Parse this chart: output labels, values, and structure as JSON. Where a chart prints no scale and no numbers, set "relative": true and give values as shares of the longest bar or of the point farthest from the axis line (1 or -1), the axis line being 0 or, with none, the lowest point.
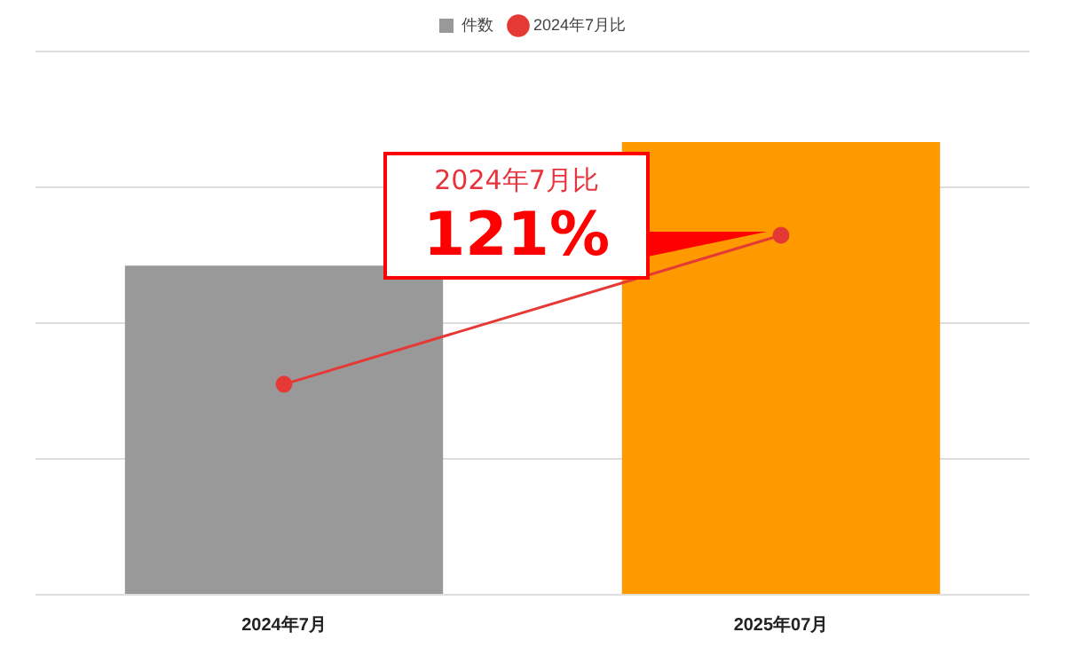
{
  "chart_data": {
    "type": "bar",
    "relative": true,
    "categories": [
      "2024年7月",
      "2025年07月"
    ],
    "series": [
      {
        "name": "件数",
        "colors": [
          "#999999",
          "#ff9900"
        ],
        "values": [
          0.727,
          1
        ]
      },
      {
        "name": "2024年7月比",
        "type": "line",
        "color": "#e53935",
        "marker": "circle",
        "values": [
          0.465,
          0.794
        ]
      }
    ],
    "annotations": [
      "2024年7月比",
      {
        "text": "121%",
        "x": "2025年07月",
        "y": 0.794
      }
    ],
    "grid": "y",
    "legend": "top"
  }
}
